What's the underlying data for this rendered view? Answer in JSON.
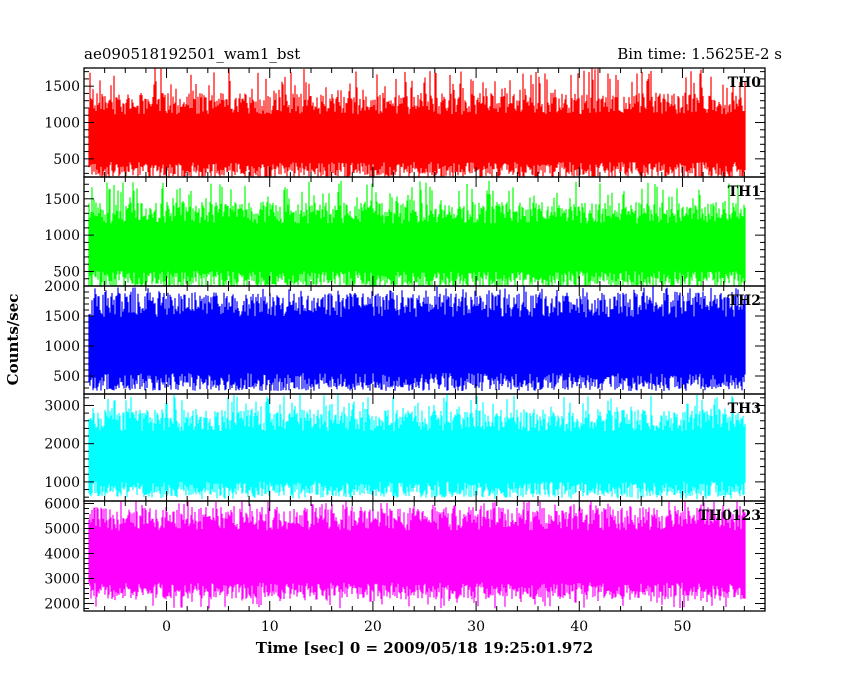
{
  "header": {
    "title": "ae090518192501_wam1_bst",
    "bin_time": "Bin time: 1.5625E-2 s"
  },
  "chart_data": {
    "type": "line",
    "xlabel": "Time [sec] 0 = 2009/05/18 19:25:01.972",
    "ylabel": "Counts/sec",
    "xlim": [
      -8,
      58
    ],
    "x_ticks": [
      0,
      10,
      20,
      30,
      40,
      50
    ],
    "x_range_data": [
      -7.5,
      56.1
    ],
    "grid": false,
    "panels": [
      {
        "name": "TH0",
        "color": "#ff0000",
        "ylim": [
          250,
          1750
        ],
        "y_ticks": [
          500,
          1000,
          1500
        ],
        "typical_low": 350,
        "typical_high": 1200,
        "min": 150,
        "max": 1750
      },
      {
        "name": "TH1",
        "color": "#00ff00",
        "ylim": [
          300,
          1800
        ],
        "y_ticks": [
          500,
          1000,
          1500
        ],
        "typical_low": 400,
        "typical_high": 1250,
        "min": 200,
        "max": 1750
      },
      {
        "name": "TH2",
        "color": "#0000ff",
        "ylim": [
          200,
          2000
        ],
        "y_ticks": [
          500,
          1000,
          1500,
          2000
        ],
        "typical_low": 400,
        "typical_high": 1600,
        "min": 250,
        "max": 2000
      },
      {
        "name": "TH3",
        "color": "#00ffff",
        "ylim": [
          500,
          3300
        ],
        "y_ticks": [
          1000,
          2000,
          3000
        ],
        "typical_low": 800,
        "typical_high": 2500,
        "min": 550,
        "max": 3300
      },
      {
        "name": "TH0123",
        "color": "#ff00ff",
        "ylim": [
          1700,
          6100
        ],
        "y_ticks": [
          2000,
          3000,
          4000,
          5000,
          6000
        ],
        "typical_low": 2500,
        "typical_high": 5200,
        "min": 1800,
        "max": 6100
      }
    ]
  }
}
